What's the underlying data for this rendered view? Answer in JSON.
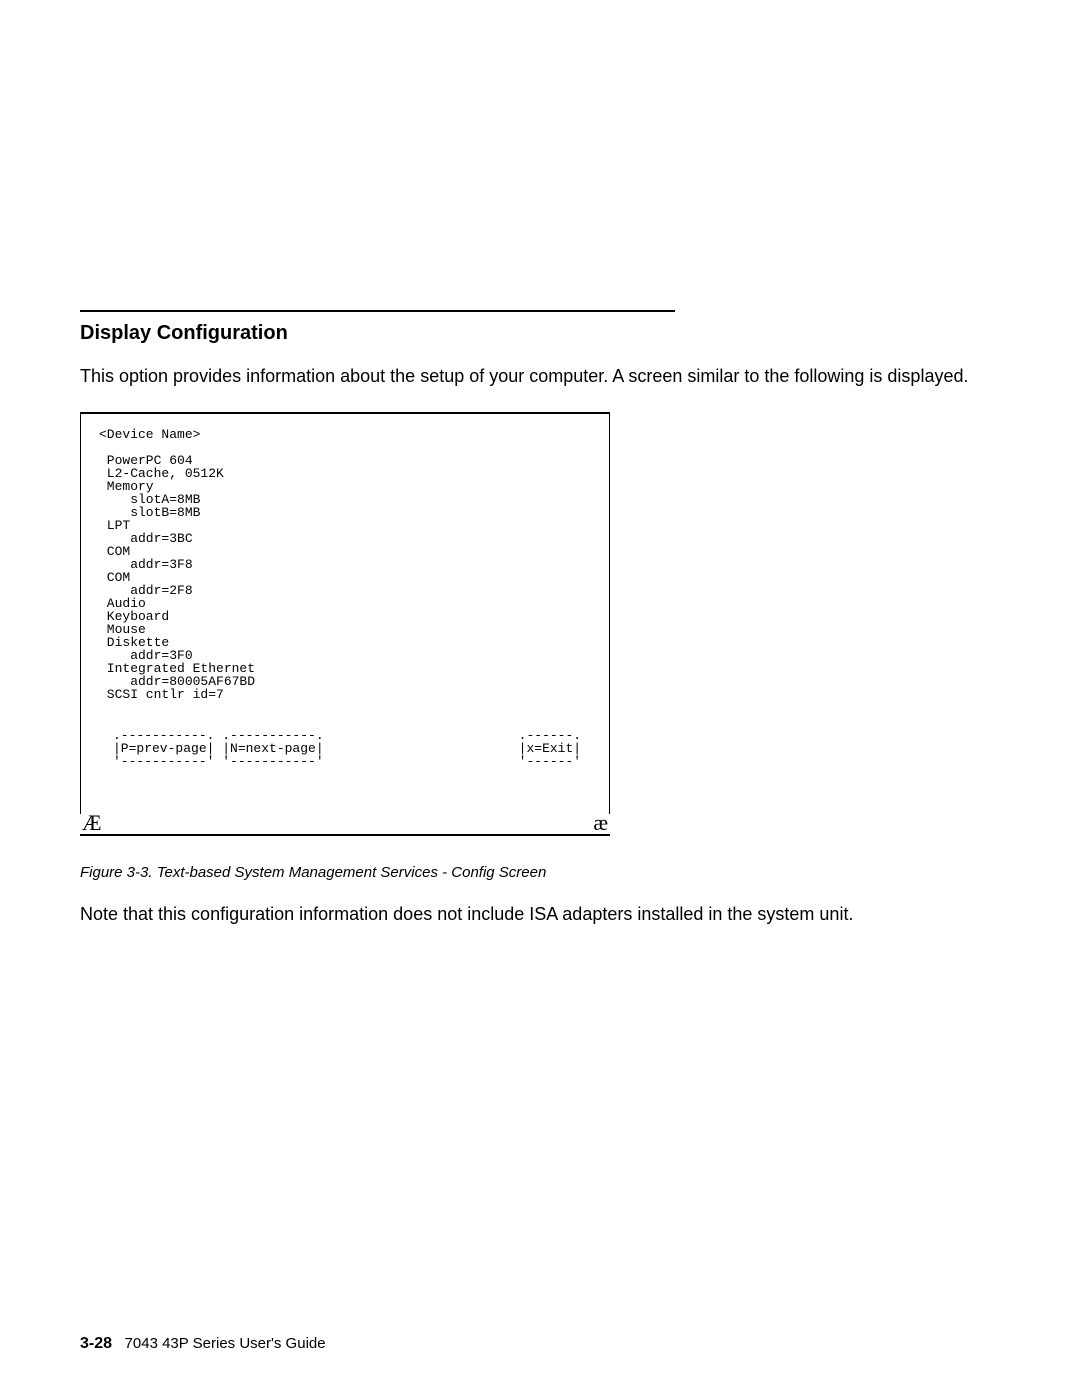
{
  "section": {
    "heading": "Display Configuration",
    "intro": "This option provides information about the setup of your computer. A screen similar to the following is displayed."
  },
  "config": {
    "header_label": "<Device Name>",
    "devices_block": " PowerPC 604\n L2-Cache, 0512K\n Memory\n    slotA=8MB\n    slotB=8MB\n LPT\n    addr=3BC\n COM\n    addr=3F8\n COM\n    addr=2F8\n Audio\n Keyboard\n Mouse\n Diskette\n    addr=3F0\n Integrated Ethernet\n    addr=80005AF67BD\n SCSI cntlr id=7",
    "nav": {
      "prev_label": "P=prev-page",
      "next_label": "N=next-page",
      "exit_label": "x=Exit"
    },
    "corner_left": "Æ",
    "corner_right": "æ"
  },
  "figure_caption": "Figure   3-3. Text-based System Management Services - Config Screen",
  "note": "Note that this configuration information does not include ISA adapters installed in the system unit.",
  "footer": {
    "page": "3-28",
    "title": "7043 43P Series User's Guide"
  },
  "styling": {
    "page_bg": "#ffffff",
    "text_color": "#000000",
    "rule_color": "#000000",
    "mono_font": "Courier New",
    "body_font": "Arial",
    "body_fontsize": 18,
    "heading_fontsize": 20,
    "mono_fontsize": 13,
    "caption_fontsize": 15,
    "footer_fontsize": 15,
    "config_box_width": 530,
    "rule_width": 595
  }
}
